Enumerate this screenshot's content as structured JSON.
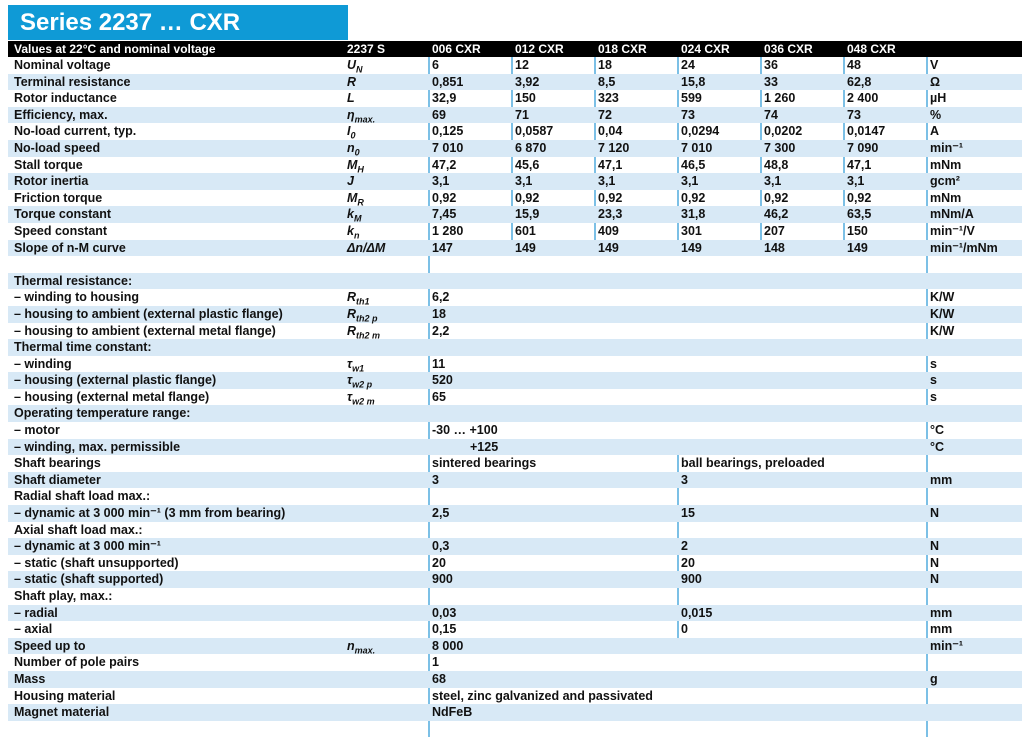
{
  "title": "Series 2237 … CXR",
  "header": {
    "label": "Values at 22°C and nominal voltage",
    "series": "2237 S",
    "models": [
      "006 CXR",
      "012 CXR",
      "018 CXR",
      "024 CXR",
      "036 CXR",
      "048 CXR"
    ]
  },
  "colors": {
    "title_bar": "#0f9ad6",
    "header_bar": "#000000",
    "row_stripe": "#d8e9f6",
    "column_divider": "#7cc0e6",
    "text": "#111111"
  },
  "table": {
    "rows": [
      {
        "label": "Nominal voltage",
        "symbol": "U_{N}",
        "type": "six",
        "values": [
          "6",
          "12",
          "18",
          "24",
          "36",
          "48"
        ],
        "unit": "V"
      },
      {
        "label": "Terminal resistance",
        "symbol": "R",
        "type": "six",
        "values": [
          "0,851",
          "3,92",
          "8,5",
          "15,8",
          "33",
          "62,8"
        ],
        "unit": "Ω"
      },
      {
        "label": "Rotor inductance",
        "symbol": "L",
        "type": "six",
        "values": [
          "32,9",
          "150",
          "323",
          "599",
          "1 260",
          "2 400"
        ],
        "unit": "µH"
      },
      {
        "label": "Efficiency, max.",
        "symbol": "η_{max.}",
        "type": "six",
        "values": [
          "69",
          "71",
          "72",
          "73",
          "74",
          "73"
        ],
        "unit": "%"
      },
      {
        "label": "No-load current, typ.",
        "symbol": "I_{0}",
        "type": "six",
        "values": [
          "0,125",
          "0,0587",
          "0,04",
          "0,0294",
          "0,0202",
          "0,0147"
        ],
        "unit": "A"
      },
      {
        "label": "No-load speed",
        "symbol": "n_{0}",
        "type": "six",
        "values": [
          "7 010",
          "6 870",
          "7 120",
          "7 010",
          "7 300",
          "7 090"
        ],
        "unit": "min⁻¹"
      },
      {
        "label": "Stall torque",
        "symbol": "M_{H}",
        "type": "six",
        "values": [
          "47,2",
          "45,6",
          "47,1",
          "46,5",
          "48,8",
          "47,1"
        ],
        "unit": "mNm"
      },
      {
        "label": "Rotor inertia",
        "symbol": "J",
        "type": "six",
        "values": [
          "3,1",
          "3,1",
          "3,1",
          "3,1",
          "3,1",
          "3,1"
        ],
        "unit": "gcm²"
      },
      {
        "label": "Friction torque",
        "symbol": "M_{R}",
        "type": "six",
        "values": [
          "0,92",
          "0,92",
          "0,92",
          "0,92",
          "0,92",
          "0,92"
        ],
        "unit": "mNm"
      },
      {
        "label": "Torque constant",
        "symbol": "k_{M}",
        "type": "six",
        "values": [
          "7,45",
          "15,9",
          "23,3",
          "31,8",
          "46,2",
          "63,5"
        ],
        "unit": "mNm/A"
      },
      {
        "label": "Speed constant",
        "symbol": "k_{n}",
        "type": "six",
        "values": [
          "1 280",
          "601",
          "409",
          "301",
          "207",
          "150"
        ],
        "unit": "min⁻¹/V"
      },
      {
        "label": "Slope of n-M curve",
        "symbol": "Δn/ΔM",
        "type": "six",
        "values": [
          "147",
          "149",
          "149",
          "149",
          "148",
          "149"
        ],
        "unit": "min⁻¹/mNm"
      },
      {
        "type": "spacer"
      },
      {
        "label": "Thermal resistance:",
        "type": "head"
      },
      {
        "label": "– winding to housing",
        "symbol": "R_{th1}",
        "type": "span",
        "values": [
          "6,2"
        ],
        "unit": "K/W"
      },
      {
        "label": "– housing to ambient (external plastic flange)",
        "symbol": "R_{th2 p}",
        "type": "span",
        "values": [
          "18"
        ],
        "unit": "K/W"
      },
      {
        "label": "– housing to ambient (external metal flange)",
        "symbol": "R_{th2 m}",
        "type": "span",
        "values": [
          "2,2"
        ],
        "unit": "K/W"
      },
      {
        "label": "Thermal time constant:",
        "type": "head"
      },
      {
        "label": "– winding",
        "symbol": "τ_{w1}",
        "type": "span",
        "values": [
          "11"
        ],
        "unit": "s"
      },
      {
        "label": "– housing (external plastic flange)",
        "symbol": "τ_{w2 p}",
        "type": "span",
        "values": [
          "520"
        ],
        "unit": "s"
      },
      {
        "label": "– housing (external metal flange)",
        "symbol": "τ_{w2 m}",
        "type": "span",
        "values": [
          "65"
        ],
        "unit": "s"
      },
      {
        "label": "Operating temperature range:",
        "type": "head"
      },
      {
        "label": "– motor",
        "type": "span",
        "values": [
          "-30 … +100"
        ],
        "unit": "°C"
      },
      {
        "label": "– winding, max. permissible",
        "type": "span",
        "values": [
          "+125"
        ],
        "unit": "°C",
        "indent": 38
      },
      {
        "label": "Shaft bearings",
        "type": "two",
        "values": [
          "sintered bearings",
          "ball bearings, preloaded"
        ]
      },
      {
        "label": "Shaft diameter",
        "type": "two",
        "values": [
          "3",
          "3"
        ],
        "unit": "mm"
      },
      {
        "label": "Radial shaft load max.:",
        "type": "head"
      },
      {
        "label": "– dynamic at 3 000 min⁻¹ (3 mm from bearing)",
        "type": "two",
        "values": [
          "2,5",
          "15"
        ],
        "unit": "N"
      },
      {
        "label": "Axial shaft load max.:",
        "type": "head"
      },
      {
        "label": "– dynamic at 3 000 min⁻¹",
        "type": "two",
        "values": [
          "0,3",
          "2"
        ],
        "unit": "N"
      },
      {
        "label": "– static (shaft unsupported)",
        "type": "two",
        "values": [
          "20",
          "20"
        ],
        "unit": "N"
      },
      {
        "label": "– static (shaft supported)",
        "type": "two",
        "values": [
          "900",
          "900"
        ],
        "unit": "N"
      },
      {
        "label": "Shaft play, max.:",
        "type": "head"
      },
      {
        "label": "– radial",
        "type": "two",
        "values": [
          "0,03",
          "0,015"
        ],
        "unit": "mm"
      },
      {
        "label": "– axial",
        "type": "two",
        "values": [
          "0,15",
          "0"
        ],
        "unit": "mm"
      },
      {
        "label": "Speed up to",
        "symbol": "n_{max.}",
        "type": "span",
        "values": [
          "8 000"
        ],
        "unit": "min⁻¹"
      },
      {
        "label": "Number of pole pairs",
        "type": "span",
        "values": [
          "1"
        ]
      },
      {
        "label": "Mass",
        "type": "span",
        "values": [
          "68"
        ],
        "unit": "g"
      },
      {
        "label": "Housing material",
        "type": "span",
        "values": [
          "steel, zinc galvanized and passivated"
        ]
      },
      {
        "label": "Magnet material",
        "type": "span",
        "values": [
          "NdFeB"
        ]
      }
    ]
  }
}
